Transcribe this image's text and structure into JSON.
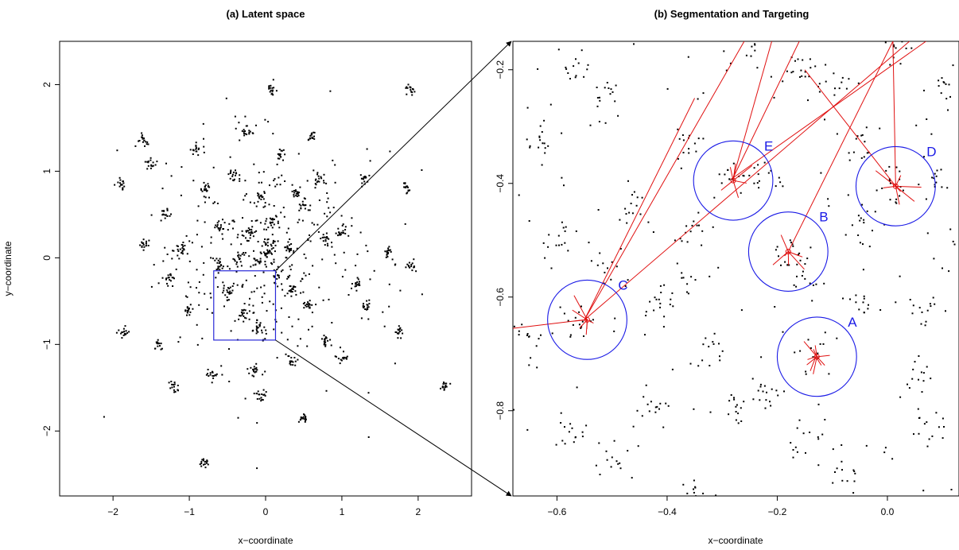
{
  "chart_data": [
    {
      "type": "scatter",
      "title": "(a) Latent space",
      "xlabel": "x−coordinate",
      "ylabel": "y−coordinate",
      "xlim": [
        -2.7,
        2.7
      ],
      "ylim": [
        -2.75,
        2.5
      ],
      "xticks": [
        -2,
        -1,
        0,
        1,
        2
      ],
      "xtick_labels": [
        "−2",
        "−1",
        "0",
        "1",
        "2"
      ],
      "yticks": [
        -2,
        -1,
        0,
        1,
        2
      ],
      "ytick_labels": [
        "−2",
        "−1",
        "0",
        "1",
        "2"
      ],
      "grid": false,
      "zoom_box": {
        "x": [
          -0.68,
          0.13
        ],
        "y": [
          -0.95,
          -0.15
        ],
        "color": "#2a2ad8"
      },
      "cluster_centers": [
        [
          0.05,
          0.15
        ],
        [
          0.0,
          0.05
        ],
        [
          -0.1,
          -0.05
        ],
        [
          0.15,
          -0.2
        ],
        [
          -0.2,
          0.3
        ],
        [
          0.1,
          0.4
        ],
        [
          -0.35,
          0.0
        ],
        [
          0.3,
          0.1
        ],
        [
          -0.5,
          -0.4
        ],
        [
          -0.3,
          -0.65
        ],
        [
          -0.1,
          -0.8
        ],
        [
          0.35,
          -0.35
        ],
        [
          0.55,
          -0.55
        ],
        [
          -0.6,
          0.35
        ],
        [
          0.5,
          0.6
        ],
        [
          -0.8,
          0.8
        ],
        [
          0.7,
          0.9
        ],
        [
          -0.4,
          0.95
        ],
        [
          0.2,
          1.2
        ],
        [
          1.0,
          0.3
        ],
        [
          -1.1,
          0.1
        ],
        [
          1.2,
          -0.3
        ],
        [
          -1.0,
          -0.6
        ],
        [
          0.8,
          -0.95
        ],
        [
          -0.15,
          -1.3
        ],
        [
          0.35,
          -1.2
        ],
        [
          -1.3,
          0.5
        ],
        [
          1.3,
          0.9
        ],
        [
          -1.4,
          -1.0
        ],
        [
          -0.7,
          -1.35
        ],
        [
          1.0,
          -1.15
        ],
        [
          0.6,
          1.4
        ],
        [
          -0.9,
          1.25
        ],
        [
          -1.6,
          0.15
        ],
        [
          1.6,
          0.05
        ],
        [
          1.9,
          -0.1
        ],
        [
          -1.9,
          0.85
        ],
        [
          1.85,
          0.8
        ],
        [
          -1.5,
          1.1
        ],
        [
          -0.25,
          1.45
        ],
        [
          1.75,
          -0.85
        ],
        [
          -1.2,
          -1.5
        ],
        [
          -0.05,
          -1.6
        ],
        [
          0.5,
          -1.85
        ],
        [
          -0.8,
          -2.35
        ],
        [
          2.35,
          -1.5
        ],
        [
          1.9,
          1.95
        ],
        [
          0.1,
          1.95
        ],
        [
          -1.6,
          1.35
        ],
        [
          -1.85,
          -0.85
        ],
        [
          0.4,
          0.75
        ],
        [
          -0.6,
          -0.1
        ],
        [
          0.8,
          0.2
        ],
        [
          -0.05,
          0.7
        ],
        [
          1.3,
          -0.55
        ],
        [
          -1.25,
          -0.25
        ]
      ],
      "cluster_size": 16,
      "background_point_count": 380
    },
    {
      "type": "scatter",
      "title": "(b) Segmentation and Targeting",
      "xlabel": "x−coordinate",
      "ylabel": "",
      "xlim": [
        -0.68,
        0.13
      ],
      "ylim": [
        -0.95,
        -0.15
      ],
      "xticks": [
        -0.6,
        -0.4,
        -0.2,
        0.0
      ],
      "xtick_labels": [
        "−0.6",
        "−0.4",
        "−0.2",
        "0.0"
      ],
      "yticks": [
        -0.8,
        -0.6,
        -0.4,
        -0.2
      ],
      "ytick_labels": [
        "−0.8",
        "−0.6",
        "−0.4",
        "−0.2"
      ],
      "grid": false,
      "segments": [
        {
          "label": "A",
          "center": [
            -0.128,
            -0.705
          ],
          "radius": 0.072
        },
        {
          "label": "B",
          "center": [
            -0.18,
            -0.52
          ],
          "radius": 0.072
        },
        {
          "label": "C",
          "center": [
            -0.545,
            -0.64
          ],
          "radius": 0.072
        },
        {
          "label": "D",
          "center": [
            0.015,
            -0.405
          ],
          "radius": 0.072
        },
        {
          "label": "E",
          "center": [
            -0.28,
            -0.395
          ],
          "radius": 0.072
        }
      ],
      "targeting_lines": [
        [
          [
            -0.55,
            -0.64
          ],
          [
            -0.68,
            -0.655
          ]
        ],
        [
          [
            -0.55,
            -0.64
          ],
          [
            -0.35,
            -0.25
          ]
        ],
        [
          [
            -0.55,
            -0.64
          ],
          [
            -0.26,
            -0.15
          ]
        ],
        [
          [
            -0.55,
            -0.64
          ],
          [
            0.04,
            -0.15
          ]
        ],
        [
          [
            -0.28,
            -0.39
          ],
          [
            -0.21,
            -0.15
          ]
        ],
        [
          [
            -0.28,
            -0.39
          ],
          [
            -0.16,
            -0.15
          ]
        ],
        [
          [
            -0.28,
            -0.39
          ],
          [
            0.07,
            -0.15
          ]
        ],
        [
          [
            -0.18,
            -0.52
          ],
          [
            0.01,
            -0.15
          ]
        ],
        [
          [
            0.015,
            -0.405
          ],
          [
            -0.15,
            -0.2
          ]
        ],
        [
          [
            0.015,
            -0.405
          ],
          [
            0.01,
            -0.15
          ]
        ],
        [
          [
            -0.13,
            -0.705
          ],
          [
            -0.14,
            -0.73
          ]
        ],
        [
          [
            -0.13,
            -0.705
          ],
          [
            -0.145,
            -0.71
          ]
        ],
        [
          [
            -0.13,
            -0.705
          ],
          [
            -0.12,
            -0.72
          ]
        ]
      ],
      "line_color": "#e01010",
      "circle_color": "#1a1ae6",
      "cluster_centers": [
        [
          -0.165,
          -0.2
        ],
        [
          0.01,
          -0.15
        ],
        [
          -0.24,
          -0.15
        ],
        [
          -0.57,
          -0.19
        ],
        [
          -0.51,
          -0.25
        ],
        [
          -0.1,
          -0.23
        ],
        [
          -0.28,
          -0.39
        ],
        [
          -0.23,
          -0.395
        ],
        [
          0.015,
          -0.405
        ],
        [
          -0.055,
          -0.33
        ],
        [
          -0.18,
          -0.52
        ],
        [
          -0.55,
          -0.64
        ],
        [
          -0.42,
          -0.62
        ],
        [
          -0.37,
          -0.57
        ],
        [
          -0.13,
          -0.705
        ],
        [
          -0.14,
          -0.85
        ],
        [
          -0.145,
          -0.56
        ],
        [
          0.07,
          -0.62
        ],
        [
          0.05,
          -0.75
        ],
        [
          0.08,
          -0.82
        ],
        [
          -0.31,
          -0.7
        ],
        [
          -0.22,
          -0.77
        ],
        [
          -0.27,
          -0.8
        ],
        [
          -0.49,
          -0.89
        ],
        [
          -0.46,
          -0.44
        ],
        [
          -0.36,
          -0.48
        ],
        [
          -0.04,
          -0.61
        ],
        [
          0.11,
          -0.24
        ],
        [
          -0.63,
          -0.33
        ],
        [
          -0.65,
          -0.67
        ],
        [
          -0.36,
          -0.33
        ],
        [
          -0.5,
          -0.54
        ],
        [
          -0.58,
          -0.84
        ],
        [
          -0.6,
          -0.5
        ],
        [
          0.09,
          -0.4
        ],
        [
          -0.04,
          -0.48
        ],
        [
          -0.35,
          -0.95
        ],
        [
          -0.08,
          -0.9
        ],
        [
          0.12,
          -0.53
        ],
        [
          -0.43,
          -0.79
        ]
      ],
      "cluster_size": 14,
      "background_point_count": 90
    }
  ]
}
